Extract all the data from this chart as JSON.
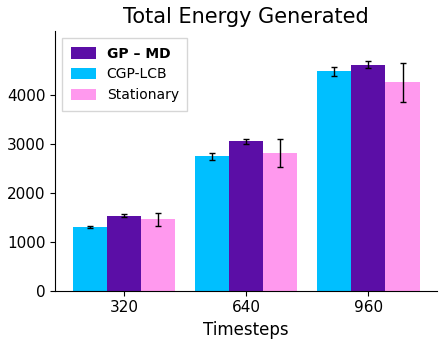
{
  "title": "Total Energy Generated",
  "xlabel": "Timesteps",
  "categories": [
    320,
    640,
    960
  ],
  "series_order": [
    "CGP-LCB",
    "GP-MD",
    "Stationary"
  ],
  "series": {
    "CGP-LCB": {
      "values": [
        1300,
        2750,
        4480
      ],
      "errors": [
        25,
        70,
        100
      ],
      "color": "#00BFFF"
    },
    "GP-MD": {
      "values": [
        1530,
        3050,
        4620
      ],
      "errors": [
        30,
        55,
        80
      ],
      "color": "#5B0EA6"
    },
    "Stationary": {
      "values": [
        1460,
        2820,
        4260
      ],
      "errors": [
        130,
        290,
        400
      ],
      "color": "#FF99EE"
    }
  },
  "legend_labels": [
    "GP – MD",
    "CGP-LCB",
    "Stationary"
  ],
  "legend_colors": [
    "#5B0EA6",
    "#00BFFF",
    "#FF99EE"
  ],
  "ylim": [
    0,
    5300
  ],
  "yticks": [
    0,
    1000,
    2000,
    3000,
    4000
  ],
  "bar_width": 0.28,
  "title_fontsize": 15,
  "tick_fontsize": 11,
  "xlabel_fontsize": 12,
  "legend_fontsize": 10,
  "background_color": "#ffffff"
}
